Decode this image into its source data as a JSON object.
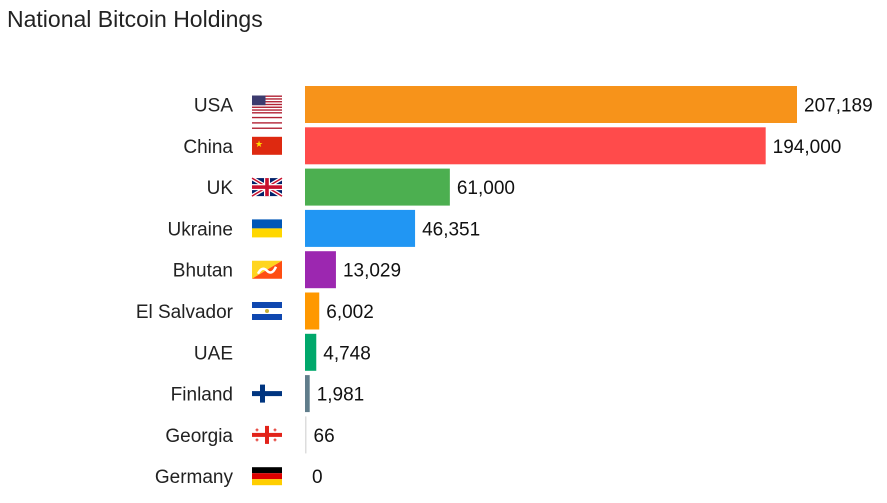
{
  "chart_data": {
    "type": "bar",
    "orientation": "horizontal",
    "title": "National Bitcoin Holdings",
    "xlabel": "",
    "ylabel": "",
    "grid": false,
    "legend": "none",
    "categories": [
      "USA",
      "China",
      "UK",
      "Ukraine",
      "Bhutan",
      "El Salvador",
      "UAE",
      "Finland",
      "Georgia",
      "Germany"
    ],
    "values": [
      207189,
      194000,
      61000,
      46351,
      13029,
      6002,
      4748,
      1981,
      66,
      0
    ],
    "value_labels": [
      "207,189",
      "194,000",
      "61,000",
      "46,351",
      "13,029",
      "6,002",
      "4,748",
      "1,981",
      "66",
      "0"
    ],
    "colors": [
      "#F7931A",
      "#FF4B4B",
      "#4CAF50",
      "#2196F3",
      "#9C27B0",
      "#FF9800",
      "#00A86B",
      "#607D8B",
      "#DDDDDD",
      "#DDDDDD"
    ],
    "flags": [
      "us-flag-icon",
      "china-flag-icon",
      "uk-flag-icon",
      "ukraine-flag-icon",
      "bhutan-flag-icon",
      "el-salvador-flag-icon",
      "",
      "finland-flag-icon",
      "georgia-flag-icon",
      "germany-flag-icon"
    ],
    "xlim": [
      0,
      207189
    ]
  }
}
